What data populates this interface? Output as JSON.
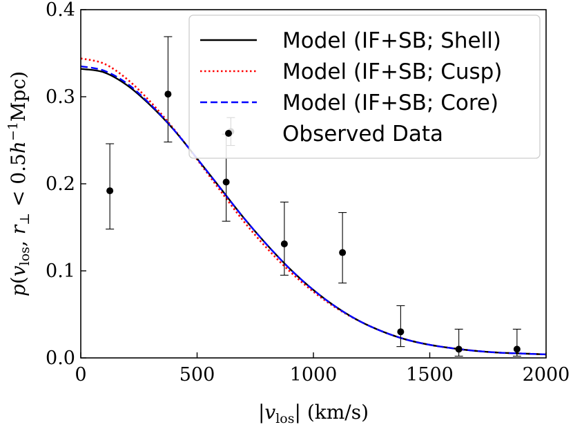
{
  "chart_data": {
    "type": "line",
    "title": "",
    "xlabel": "|v_los| (km/s)",
    "ylabel": "p(v_los, r_⊥ < 0.5h⁻¹Mpc)",
    "xlim": [
      0,
      2000
    ],
    "ylim": [
      0.0,
      0.4
    ],
    "xticks": [
      "0",
      "500",
      "1000",
      "1500",
      "2000"
    ],
    "yticks": [
      "0.0",
      "0.1",
      "0.2",
      "0.3",
      "0.4"
    ],
    "legend_position": "top-right",
    "series": [
      {
        "name": "Model (IF+SB; Shell)",
        "color": "#000000",
        "style": "solid",
        "x": [
          0,
          100,
          200,
          300,
          400,
          500,
          600,
          700,
          800,
          900,
          1000,
          1100,
          1200,
          1300,
          1400,
          1500,
          1600,
          1700,
          1800,
          1900,
          2000
        ],
        "y": [
          0.332,
          0.328,
          0.313,
          0.29,
          0.262,
          0.229,
          0.195,
          0.161,
          0.13,
          0.102,
          0.078,
          0.058,
          0.042,
          0.03,
          0.021,
          0.015,
          0.011,
          0.008,
          0.006,
          0.005,
          0.004
        ]
      },
      {
        "name": "Model (IF+SB; Cusp)",
        "color": "#ff0000",
        "style": "dotted",
        "x": [
          0,
          100,
          200,
          300,
          400,
          500,
          600,
          700,
          800,
          900,
          1000,
          1100,
          1200,
          1300,
          1400,
          1500,
          1600,
          1700,
          1800,
          1900,
          2000
        ],
        "y": [
          0.344,
          0.338,
          0.32,
          0.294,
          0.263,
          0.228,
          0.192,
          0.157,
          0.126,
          0.099,
          0.076,
          0.057,
          0.042,
          0.03,
          0.021,
          0.015,
          0.011,
          0.008,
          0.006,
          0.005,
          0.004
        ]
      },
      {
        "name": "Model (IF+SB; Core)",
        "color": "#0000ff",
        "style": "dashed",
        "x": [
          0,
          100,
          200,
          300,
          400,
          500,
          600,
          700,
          800,
          900,
          1000,
          1100,
          1200,
          1300,
          1400,
          1500,
          1600,
          1700,
          1800,
          1900,
          2000
        ],
        "y": [
          0.335,
          0.33,
          0.315,
          0.291,
          0.262,
          0.229,
          0.195,
          0.161,
          0.13,
          0.102,
          0.078,
          0.058,
          0.042,
          0.03,
          0.021,
          0.015,
          0.011,
          0.008,
          0.006,
          0.005,
          0.004
        ]
      }
    ],
    "observed": {
      "name": "Observed Data",
      "color": "#000000",
      "points": [
        {
          "x": 125,
          "y": 0.192,
          "lo": 0.148,
          "hi": 0.246
        },
        {
          "x": 375,
          "y": 0.303,
          "lo": 0.248,
          "hi": 0.369
        },
        {
          "x": 625,
          "y": 0.202,
          "lo": 0.157,
          "hi": 0.257
        },
        {
          "x": 645,
          "y": 0.26,
          "lo": 0.244,
          "hi": 0.276
        },
        {
          "x": 875,
          "y": 0.131,
          "lo": 0.095,
          "hi": 0.179
        },
        {
          "x": 1125,
          "y": 0.121,
          "lo": 0.086,
          "hi": 0.167
        },
        {
          "x": 1375,
          "y": 0.03,
          "lo": 0.013,
          "hi": 0.06
        },
        {
          "x": 1625,
          "y": 0.01,
          "lo": 0.002,
          "hi": 0.033
        },
        {
          "x": 1875,
          "y": 0.01,
          "lo": 0.002,
          "hi": 0.033
        }
      ]
    }
  }
}
